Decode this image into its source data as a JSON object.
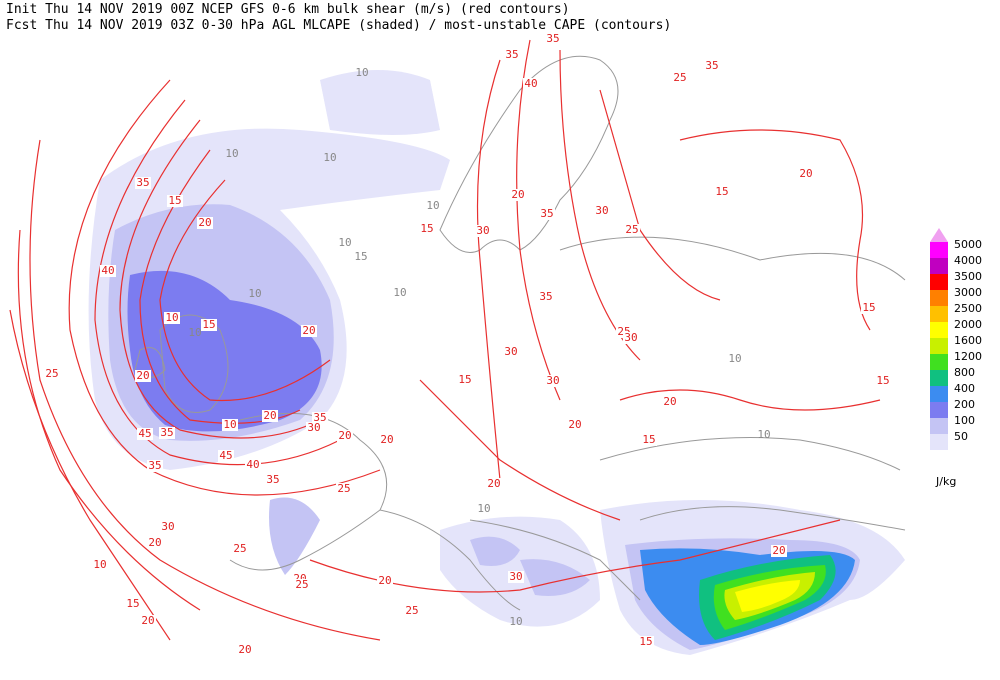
{
  "header": {
    "line1": "Init  Thu 14 NOV 2019 00Z  NCEP GFS 0-6 km bulk shear (m/s) (red contours)",
    "line2": "Fcst Thu 14 NOV 2019 03Z  0-30 hPa AGL MLCAPE (shaded) / most-unstable CAPE (contours)"
  },
  "legend": {
    "levels": [
      50,
      100,
      200,
      400,
      800,
      1200,
      1600,
      2000,
      2500,
      3000,
      3500,
      4000,
      5000
    ],
    "colors": [
      "#e4e4fa",
      "#c4c4f4",
      "#7c7cf0",
      "#3c8cf0",
      "#10c080",
      "#40e020",
      "#c8f000",
      "#ffff00",
      "#ffc000",
      "#ff8000",
      "#ff0000",
      "#c000c0",
      "#ff00ff"
    ],
    "unit": "J/kg"
  },
  "shear_labels": [
    35,
    15,
    20,
    40,
    25,
    45,
    35,
    45,
    40,
    35,
    30,
    20,
    25,
    35,
    20,
    15,
    20,
    10,
    20,
    10,
    35,
    30,
    20,
    20,
    25,
    20,
    25,
    20,
    10,
    15,
    20,
    20,
    25,
    30,
    15,
    20,
    35,
    25,
    35,
    20,
    15,
    25,
    30,
    35,
    25,
    15,
    30,
    15,
    20,
    20,
    15,
    20,
    15,
    30,
    30,
    35,
    30,
    15,
    20,
    40,
    35
  ],
  "cape_labels": [
    10,
    10,
    10,
    10,
    10,
    15,
    10,
    10,
    10,
    10,
    10,
    10,
    10
  ]
}
